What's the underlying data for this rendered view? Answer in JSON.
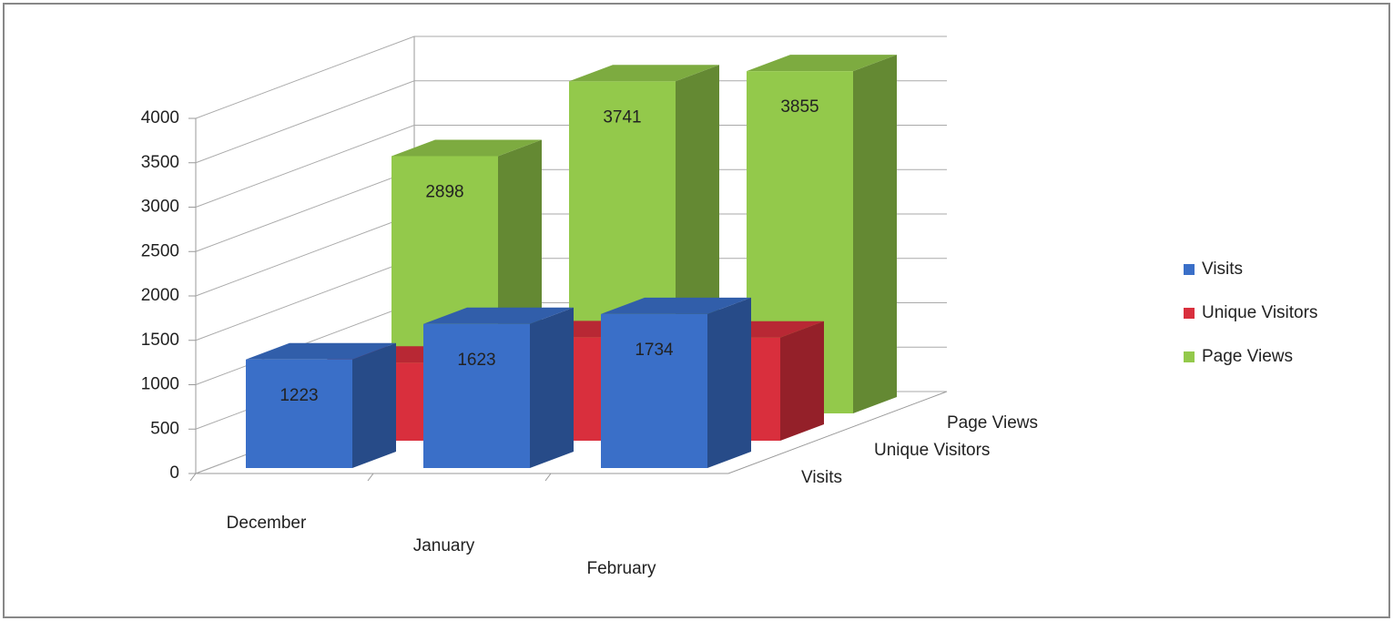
{
  "chart_data": {
    "type": "bar3d",
    "categories": [
      "December",
      "January",
      "February"
    ],
    "series": [
      {
        "name": "Visits",
        "color": "#3a6fc8",
        "values": [
          1223,
          1623,
          1734
        ]
      },
      {
        "name": "Unique Visitors",
        "color": "#d92f3d",
        "values": [
          880,
          1165,
          1162
        ]
      },
      {
        "name": "Page Views",
        "color": "#93c94b",
        "values": [
          2898,
          3741,
          3855
        ]
      }
    ],
    "ylim": [
      0,
      4000
    ],
    "yticks": [
      0,
      500,
      1000,
      1500,
      2000,
      2500,
      3000,
      3500,
      4000
    ],
    "grid": true,
    "legend": "right"
  }
}
